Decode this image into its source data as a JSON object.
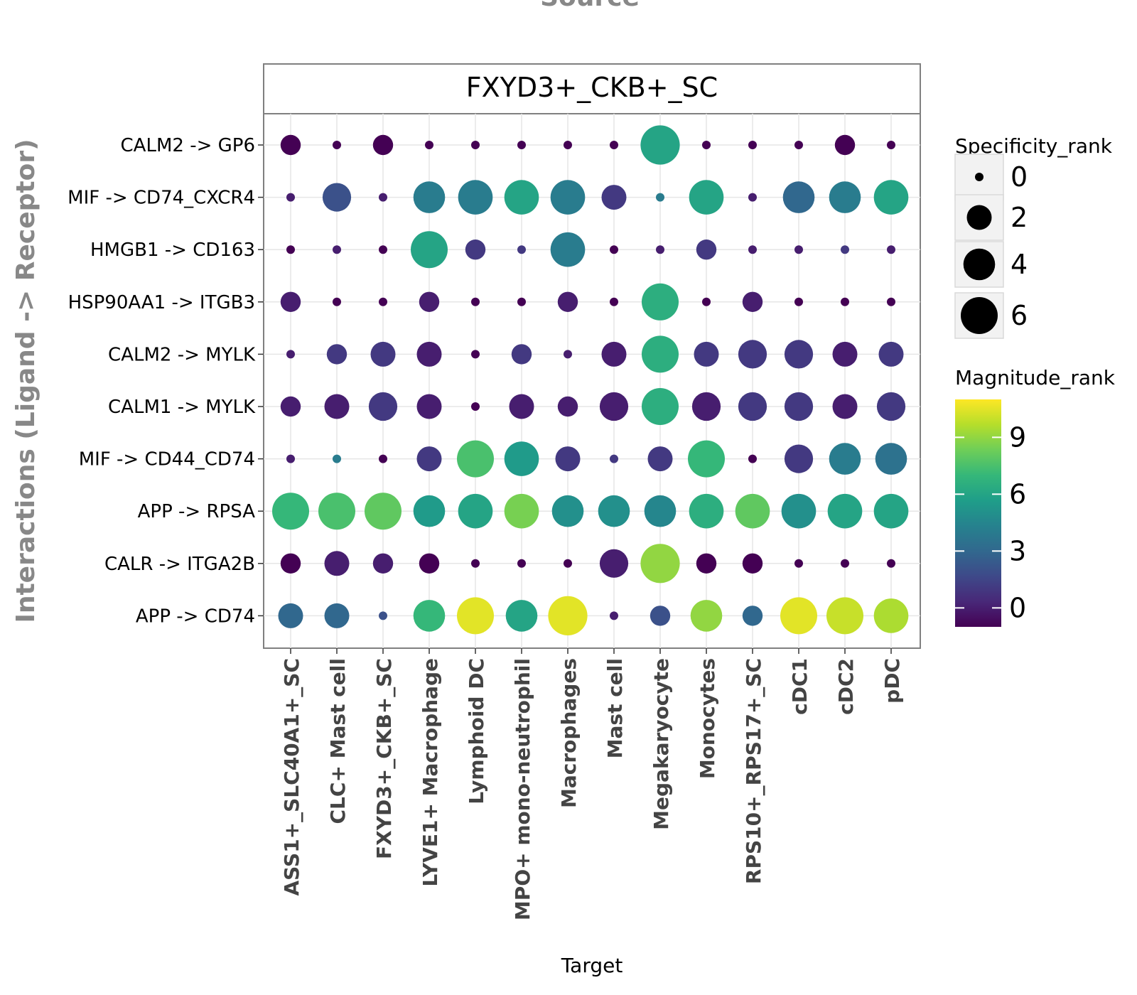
{
  "chart_data": {
    "type": "scatter",
    "title": "Source",
    "facet_label": "FXYD3+_CKB+_SC",
    "xlabel": "Target",
    "ylabel": "Interactions (Ligand -> Receptor)",
    "x_categories": [
      "ASS1+_SLC40A1+_SC",
      "CLC+ Mast cell",
      "FXYD3+_CKB+_SC",
      "LYVE1+ Macrophage",
      "Lymphoid DC",
      "MPO+ mono-neutrophil",
      "Macrophages",
      "Mast cell",
      "Megakaryocyte",
      "Monocytes",
      "RPS10+_RPS17+_SC",
      "cDC1",
      "cDC2",
      "pDC"
    ],
    "y_categories": [
      "CALM2 -> GP6",
      "MIF -> CD74_CXCR4",
      "HMGB1 -> CD163",
      "HSP90AA1 -> ITGB3",
      "CALM2 -> MYLK",
      "CALM1 -> MYLK",
      "MIF -> CD44_CD74",
      "APP -> RPSA",
      "CALR -> ITGA2B",
      "APP -> CD74"
    ],
    "size_legend": {
      "title": "Specificity_rank",
      "values": [
        0,
        2,
        4,
        6
      ]
    },
    "color_legend": {
      "title": "Magnitude_rank",
      "ticks": [
        0,
        3,
        6,
        9
      ],
      "range": [
        -1,
        11
      ],
      "colormap": "viridis"
    },
    "grid": true,
    "legend_position": "right",
    "points": {
      "size": [
        [
          1,
          0,
          1,
          0,
          0,
          0,
          0,
          0,
          7,
          0,
          0,
          0,
          1,
          0
        ],
        [
          0,
          3,
          0,
          4,
          5,
          5,
          5,
          2,
          0,
          5,
          0,
          4,
          4,
          5
        ],
        [
          0,
          0,
          0,
          6,
          1,
          0,
          5,
          0,
          0,
          1,
          0,
          0,
          0,
          0
        ],
        [
          1,
          0,
          0,
          1,
          0,
          0,
          1,
          0,
          6,
          0,
          1,
          0,
          0,
          0
        ],
        [
          0,
          1,
          2,
          2,
          0,
          1,
          0,
          2,
          6,
          2,
          3,
          3,
          2,
          2
        ],
        [
          1,
          2,
          3,
          2,
          0,
          2,
          1,
          3,
          6,
          3,
          3,
          3,
          2,
          3
        ],
        [
          0,
          0,
          0,
          2,
          6,
          5,
          2,
          0,
          2,
          6,
          0,
          3,
          4,
          4
        ],
        [
          6,
          6,
          6,
          4,
          5,
          5,
          4,
          4,
          4,
          5,
          5,
          5,
          5,
          5
        ],
        [
          1,
          2,
          1,
          1,
          0,
          0,
          0,
          3,
          7,
          1,
          1,
          0,
          0,
          0
        ],
        [
          2,
          2,
          0,
          4,
          6,
          4,
          7,
          0,
          1,
          4,
          1,
          6,
          6,
          5
        ]
      ],
      "magnitude": [
        [
          -1,
          -1,
          -1,
          -1,
          -1,
          -1,
          -1,
          -1,
          6,
          -1,
          -1,
          -1,
          -1,
          -1
        ],
        [
          0,
          2,
          0,
          4,
          4,
          6,
          4,
          1,
          4,
          6,
          0,
          3,
          4,
          6
        ],
        [
          -1,
          0,
          -1,
          6,
          1,
          1,
          4,
          -1,
          0,
          1,
          0,
          0,
          1,
          0
        ],
        [
          0,
          -1,
          -1,
          0,
          -1,
          -1,
          0,
          -1,
          6.5,
          -1,
          0,
          -1,
          -1,
          -1
        ],
        [
          0,
          1,
          1,
          0,
          -1,
          1,
          0,
          0,
          6.5,
          1,
          1,
          1,
          0,
          1
        ],
        [
          0,
          0,
          1,
          0,
          -1,
          0,
          0,
          0,
          6.5,
          0,
          1,
          1,
          0,
          1
        ],
        [
          0,
          4,
          -1,
          1,
          7.5,
          5.5,
          1,
          1,
          1,
          7,
          -1,
          1,
          4,
          3.5
        ],
        [
          7,
          7.5,
          8,
          5.5,
          6,
          8.5,
          5,
          5,
          4.5,
          6.5,
          8,
          5,
          6,
          6
        ],
        [
          -1,
          0,
          0,
          -1,
          -1,
          -1,
          -1,
          0,
          9,
          -1,
          -1,
          -1,
          -1,
          -1
        ],
        [
          3,
          3,
          2,
          7,
          10.5,
          6,
          10.5,
          0,
          2,
          9,
          3,
          10.5,
          10,
          9.5
        ]
      ]
    }
  }
}
